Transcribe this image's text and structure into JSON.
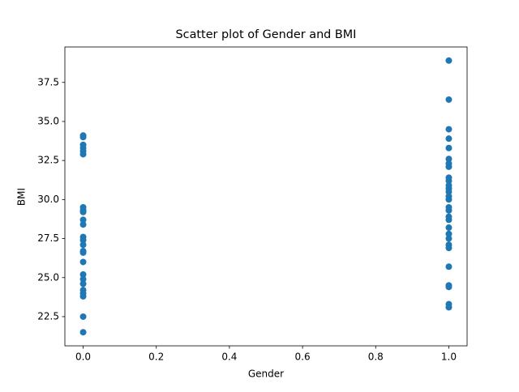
{
  "chart_data": {
    "type": "scatter",
    "title": "Scatter plot of Gender and BMI",
    "x_label": "Gender",
    "y_label": "BMI",
    "color": "#1f77b4",
    "x": [
      0,
      0,
      0,
      0,
      0,
      0,
      0,
      0,
      0,
      0,
      0,
      0,
      0,
      0,
      0,
      0,
      0,
      0,
      0,
      0,
      0,
      0,
      0,
      0,
      0,
      1,
      1,
      1,
      1,
      1,
      1,
      1,
      1,
      1,
      1,
      1,
      1,
      1,
      1,
      1,
      1,
      1,
      1,
      1,
      1,
      1,
      1,
      1,
      1,
      1,
      1,
      1,
      1,
      1
    ],
    "values": [
      34.1,
      34.0,
      33.5,
      33.3,
      33.1,
      32.9,
      29.5,
      29.3,
      29.2,
      28.7,
      28.4,
      27.6,
      27.4,
      27.1,
      26.7,
      26.6,
      26.0,
      25.2,
      24.9,
      24.6,
      24.2,
      24.0,
      23.8,
      22.5,
      21.5,
      38.9,
      36.4,
      34.5,
      33.9,
      33.3,
      32.6,
      32.3,
      32.1,
      31.4,
      31.2,
      30.9,
      30.7,
      30.5,
      30.2,
      30.0,
      29.5,
      29.3,
      28.9,
      28.7,
      28.2,
      27.8,
      27.5,
      27.1,
      26.9,
      25.7,
      24.5,
      24.4,
      23.3,
      23.1
    ],
    "xlim": [
      -0.05,
      1.05
    ],
    "ylim": [
      20.63,
      39.77
    ],
    "xticks": [
      {
        "value": 0,
        "label": "0.0"
      },
      0.2,
      0.4,
      0.6,
      0.8,
      {
        "value": 1,
        "label": "1.0"
      }
    ],
    "yticks": [
      22.5,
      {
        "value": 25,
        "label": "25.0"
      },
      27.5,
      {
        "value": 30,
        "label": "30.0"
      },
      32.5,
      {
        "value": 35,
        "label": "35.0"
      },
      37.5
    ]
  }
}
